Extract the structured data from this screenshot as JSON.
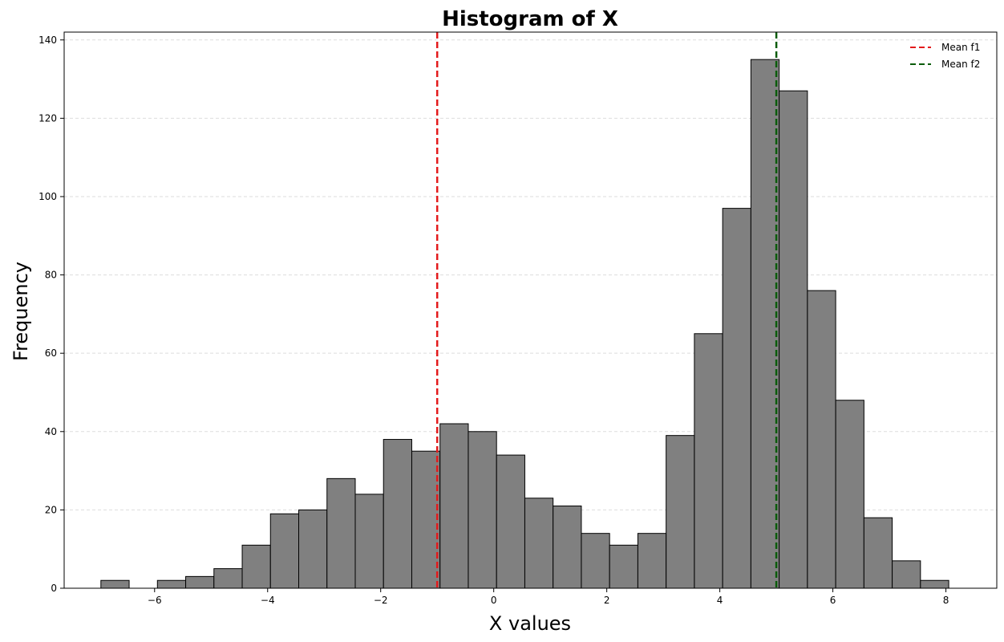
{
  "chart_data": {
    "type": "bar",
    "title": "Histogram of X",
    "xlabel": "X values",
    "ylabel": "Frequency",
    "xlim": [
      -7.6,
      8.9
    ],
    "ylim": [
      0,
      142
    ],
    "grid": "y-dashed",
    "legend_position": "top-right",
    "bin_edges": [
      -6.95,
      -6.45,
      -5.95,
      -5.45,
      -4.95,
      -4.45,
      -3.95,
      -3.45,
      -2.95,
      -2.45,
      -1.95,
      -1.45,
      -0.95,
      -0.45,
      0.05,
      0.55,
      1.05,
      1.55,
      2.05,
      2.55,
      3.05,
      3.55,
      4.05,
      4.55,
      5.05,
      5.55,
      6.05,
      6.55,
      7.05,
      7.55,
      8.05
    ],
    "values": [
      2,
      0,
      2,
      3,
      5,
      11,
      19,
      20,
      28,
      24,
      38,
      35,
      42,
      40,
      34,
      23,
      21,
      14,
      11,
      14,
      39,
      65,
      97,
      135,
      127,
      76,
      48,
      18,
      7,
      2
    ],
    "bar_color": "#808080",
    "bar_edge_color": "#000000",
    "x_ticks": [
      -6,
      -4,
      -2,
      0,
      2,
      4,
      6,
      8
    ],
    "x_tick_labels": [
      "−6",
      "−4",
      "−2",
      "0",
      "2",
      "4",
      "6",
      "8"
    ],
    "y_ticks": [
      0,
      20,
      40,
      60,
      80,
      100,
      120,
      140
    ],
    "y_tick_labels": [
      "0",
      "20",
      "40",
      "60",
      "80",
      "100",
      "120",
      "140"
    ],
    "vlines": [
      {
        "name": "Mean f1",
        "x": -1.0,
        "color": "#e31a1c"
      },
      {
        "name": "Mean f2",
        "x": 5.0,
        "color": "#0a5c0a"
      }
    ]
  }
}
